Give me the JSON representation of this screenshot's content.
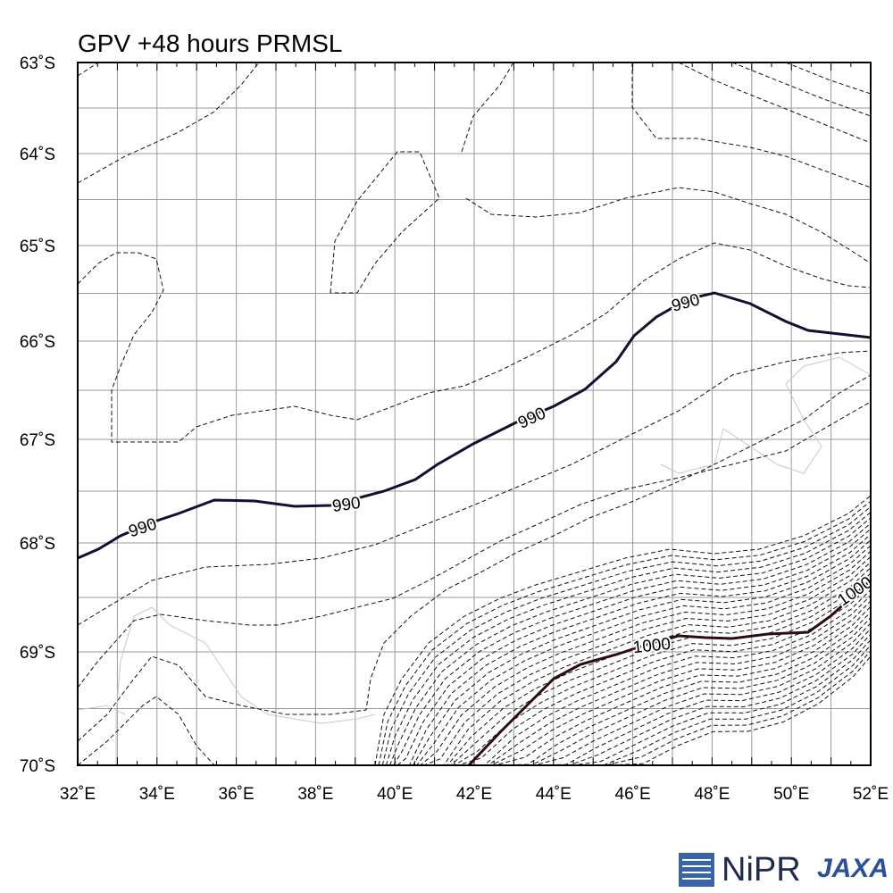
{
  "map": {
    "title": "GPV +48 hours PRMSL",
    "lat_labels": [
      "63˚S",
      "64˚S",
      "65˚S",
      "66˚S",
      "67˚S",
      "68˚S",
      "69˚S",
      "70˚S"
    ],
    "lon_labels": [
      "32˚E",
      "34˚E",
      "36˚E",
      "38˚E",
      "40˚E",
      "42˚E",
      "44˚E",
      "46˚E",
      "48˚E",
      "50˚E",
      "52˚E"
    ],
    "contour_labels": [
      "990",
      "990",
      "990",
      "990",
      "1000",
      "1000"
    ]
  },
  "logos": {
    "nipr": "NiPR",
    "jaxa": "JAXA"
  }
}
